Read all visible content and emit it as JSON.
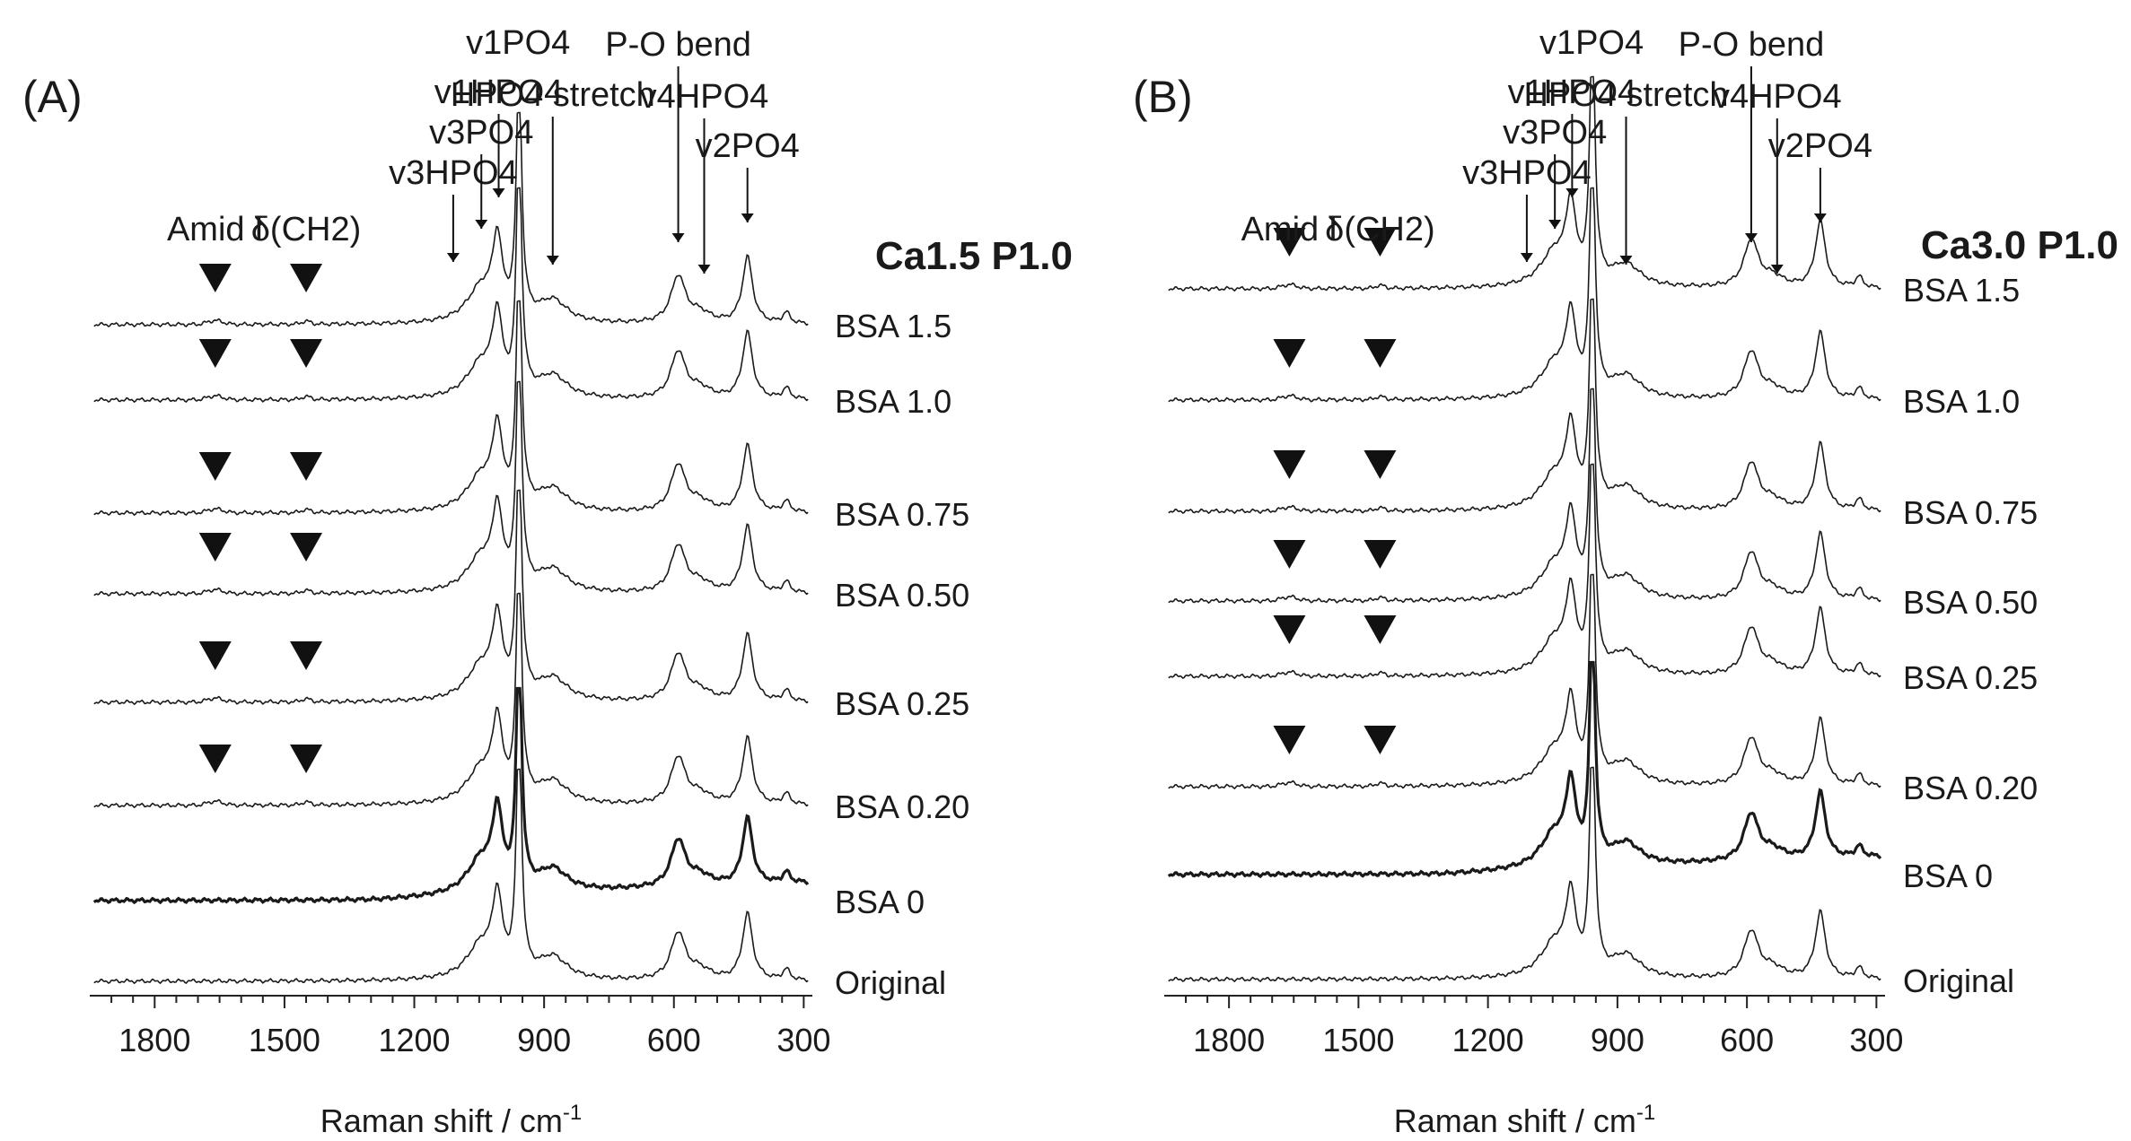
{
  "figure": {
    "description_free": true,
    "x_axis_label_main": "Raman shift / cm",
    "x_axis_label_sup": "-1"
  },
  "chart_data": [
    {
      "type": "line",
      "panel_label": "(A)",
      "title": "Ca1.5 P1.0",
      "xlabel": "Raman shift / cm-1",
      "xlim": [
        1950,
        280
      ],
      "x_ticks": [
        1800,
        1500,
        1200,
        900,
        600,
        300
      ],
      "x_tick_labels": [
        "1800",
        "1500",
        "1200",
        "900",
        "600",
        "300"
      ],
      "x_reversed": true,
      "series": [
        {
          "name": "BSA 1.5",
          "label": "BSA 1.5",
          "amide_markers": true,
          "thick": false
        },
        {
          "name": "BSA 1.0",
          "label": "BSA 1.0",
          "amide_markers": true,
          "thick": false
        },
        {
          "name": "BSA 0.75",
          "label": "BSA 0.75",
          "amide_markers": true,
          "thick": false
        },
        {
          "name": "BSA 0.50",
          "label": "BSA 0.50",
          "amide_markers": true,
          "thick": false
        },
        {
          "name": "BSA 0.25",
          "label": "BSA 0.25",
          "amide_markers": true,
          "thick": false
        },
        {
          "name": "BSA 0.20",
          "label": "BSA 0.20",
          "amide_markers": true,
          "thick": false
        },
        {
          "name": "BSA 0",
          "label": "BSA 0",
          "amide_markers": false,
          "thick": true
        },
        {
          "name": "Original",
          "label": "Original",
          "amide_markers": false,
          "thick": false
        }
      ],
      "band_annotations": [
        {
          "label": "Amid I",
          "wavenumber": 1660
        },
        {
          "label": "δ(CH2)",
          "wavenumber": 1450
        },
        {
          "label": "v3HPO4",
          "wavenumber": 1110
        },
        {
          "label": "v3PO4",
          "wavenumber": 1045
        },
        {
          "label": "v1HPO4",
          "wavenumber": 1005
        },
        {
          "label": "v1PO4",
          "wavenumber": 960
        },
        {
          "label": "HPO4 stretch",
          "wavenumber": 880
        },
        {
          "label": "P-O bend",
          "wavenumber": 590
        },
        {
          "label": "v4HPO4",
          "wavenumber": 530
        },
        {
          "label": "v2PO4",
          "wavenumber": 430
        }
      ]
    },
    {
      "type": "line",
      "panel_label": "(B)",
      "title": "Ca3.0 P1.0",
      "xlabel": "Raman shift / cm-1",
      "xlim": [
        1950,
        280
      ],
      "x_ticks": [
        1800,
        1500,
        1200,
        900,
        600,
        300
      ],
      "x_tick_labels": [
        "1800",
        "1500",
        "1200",
        "900",
        "600",
        "300"
      ],
      "x_reversed": true,
      "series": [
        {
          "name": "BSA 1.5",
          "label": "BSA 1.5",
          "amide_markers": true,
          "thick": false
        },
        {
          "name": "BSA 1.0",
          "label": "BSA 1.0",
          "amide_markers": true,
          "thick": false
        },
        {
          "name": "BSA 0.75",
          "label": "BSA 0.75",
          "amide_markers": true,
          "thick": false
        },
        {
          "name": "BSA 0.50",
          "label": "BSA 0.50",
          "amide_markers": true,
          "thick": false
        },
        {
          "name": "BSA 0.25",
          "label": "BSA 0.25",
          "amide_markers": true,
          "thick": false
        },
        {
          "name": "BSA 0.20",
          "label": "BSA 0.20",
          "amide_markers": true,
          "thick": false
        },
        {
          "name": "BSA 0",
          "label": "BSA 0",
          "amide_markers": false,
          "thick": true
        },
        {
          "name": "Original",
          "label": "Original",
          "amide_markers": false,
          "thick": false
        }
      ],
      "band_annotations": [
        {
          "label": "Amid I",
          "wavenumber": 1660
        },
        {
          "label": "δ(CH2)",
          "wavenumber": 1450
        },
        {
          "label": "v3HPO4",
          "wavenumber": 1110
        },
        {
          "label": "v3PO4",
          "wavenumber": 1045
        },
        {
          "label": "v1HPO4",
          "wavenumber": 1005
        },
        {
          "label": "v1PO4",
          "wavenumber": 960
        },
        {
          "label": "HPO4 stretch",
          "wavenumber": 880
        },
        {
          "label": "P-O bend",
          "wavenumber": 590
        },
        {
          "label": "v4HPO4",
          "wavenumber": 530
        },
        {
          "label": "v2PO4",
          "wavenumber": 430
        }
      ]
    }
  ]
}
